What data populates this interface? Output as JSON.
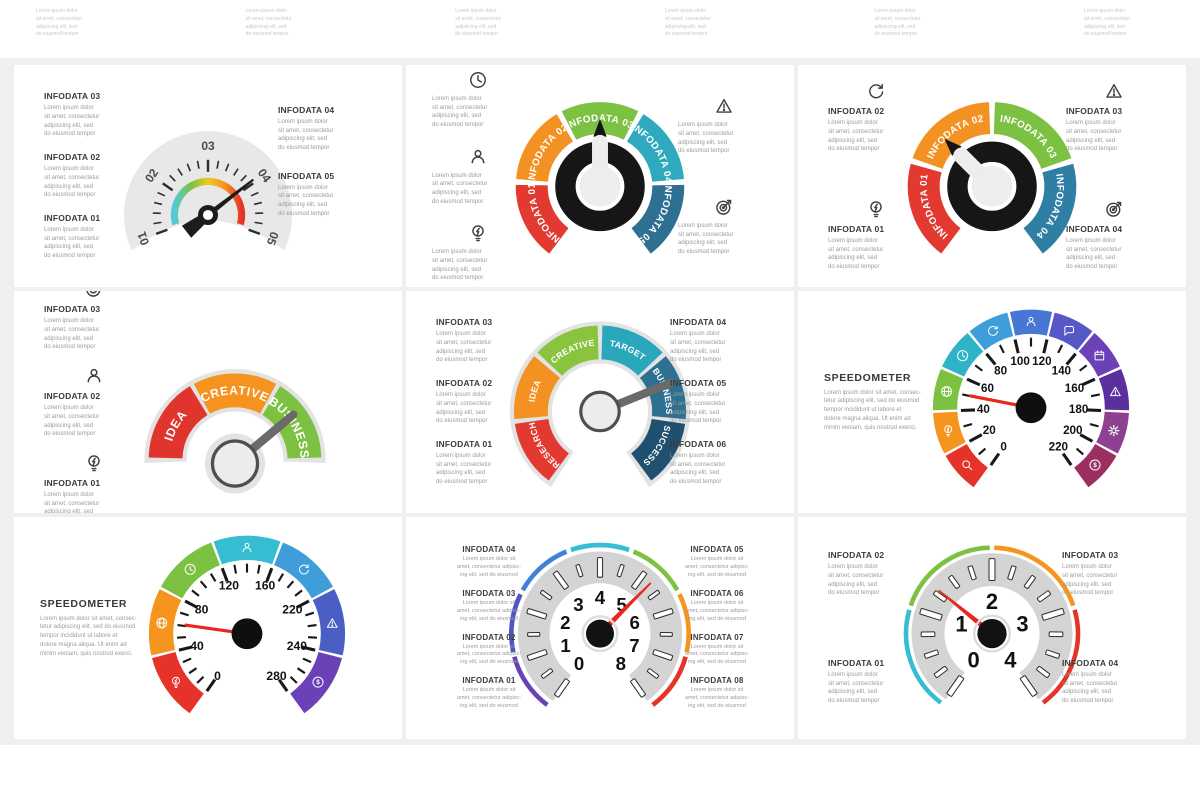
{
  "page": {
    "background": "#ffffff",
    "canvas_background": "#efefef",
    "card_background": "#ffffff",
    "needle_red": "#e8281e",
    "band_gray": "#d4d4d4",
    "body_gray": "#e8e8e8"
  },
  "shared": {
    "body": "Lorem ipsum dolor\nsit amet, consectetur\nadipiscing elit, sed\ndo eiusmod tempor",
    "body3": "Lorem ipsum dolor sit\namet, consectetur adipisc-\ning elit, sed do eiusmod",
    "speedo_paragraph": "Lorem ipsum dolor sit amet, consec-\ntetur adipiscing elit, sed do eiusmod\ntempor incididunt ut labore et\ndolore magna aliqua. Ut enim ad\nminim veniam, quis nostrud exerci."
  },
  "cards": {
    "c1": {
      "left_titles": [
        "INFODATA 03",
        "INFODATA 02",
        "INFODATA 01"
      ],
      "right_titles": [
        "INFODATA 04",
        "INFODATA 05"
      ],
      "gauge": {
        "type": "scale",
        "scale": [
          "01",
          "02",
          "03",
          "04",
          "05"
        ],
        "gradient": [
          "#54c9d9",
          "#7cc142",
          "#f2c71f",
          "#f5941f",
          "#e6332a"
        ],
        "body_color": "#e8e8e8",
        "needle_color": "#1c1c1c",
        "needle_angle": 38
      }
    },
    "c2": {
      "left_icons": [
        "clock",
        "user",
        "bulb"
      ],
      "right_icons": [
        "warning",
        "target"
      ],
      "gauge": {
        "type": "ring",
        "needle_angle": 90,
        "segments": [
          {
            "label": "INFODATA 01",
            "color": "#e23a31"
          },
          {
            "label": "INFODATA 02",
            "color": "#f39222"
          },
          {
            "label": "INFODATA 03",
            "color": "#7cc142"
          },
          {
            "label": "INFODATA 04",
            "color": "#2fa9bd"
          },
          {
            "label": "INFODATA 05",
            "color": "#2d7091"
          }
        ]
      }
    },
    "c3": {
      "left": [
        {
          "icon": "refresh",
          "title": "INFODATA 02"
        },
        {
          "icon": "bulb",
          "title": "INFODATA 01"
        }
      ],
      "right": [
        {
          "icon": "warning",
          "title": "INFODATA 03"
        },
        {
          "icon": "target",
          "title": "INFODATA 04"
        }
      ],
      "gauge": {
        "type": "ring",
        "needle_angle": 135,
        "segments": [
          {
            "label": "INFODATA 01",
            "color": "#e23a31"
          },
          {
            "label": "INFODATA 02",
            "color": "#f39222"
          },
          {
            "label": "INFODATA 03",
            "color": "#7cc142"
          },
          {
            "label": "INFODATA 04",
            "color": "#2f7fa5"
          }
        ]
      }
    },
    "c4": {
      "left": [
        {
          "icon": "target",
          "title": "INFODATA 03"
        },
        {
          "icon": "user",
          "title": "INFODATA 02"
        },
        {
          "icon": "bulb",
          "title": "INFODATA 01"
        }
      ],
      "gauge": {
        "type": "ring",
        "needle_angle": 40,
        "segments": [
          {
            "label": "IDEA",
            "color": "#e0352c"
          },
          {
            "label": "CREATIVE",
            "color": "#f6921e"
          },
          {
            "label": "BUSINESS",
            "color": "#7cc142"
          }
        ]
      }
    },
    "c5": {
      "left_titles": [
        "INFODATA 03",
        "INFODATA 02",
        "INFODATA 01"
      ],
      "right_titles": [
        "INFODATA 04",
        "INFODATA 05",
        "INFODATA 06"
      ],
      "gauge": {
        "type": "ring",
        "needle_angle": 22,
        "segments": [
          {
            "label": "RESEARCH",
            "color": "#e23a31"
          },
          {
            "label": "IDEA",
            "color": "#f39222"
          },
          {
            "label": "CREATIVE",
            "color": "#8ac43f"
          },
          {
            "label": "TARGET",
            "color": "#2ba7bc"
          },
          {
            "label": "BUSINESS",
            "color": "#2d7091"
          },
          {
            "label": "SUCCESS",
            "color": "#20506f"
          }
        ]
      }
    },
    "c6": {
      "heading": "SPEEDOMETER",
      "gauge": {
        "type": "speedo",
        "needle_angle": 169,
        "scale": [
          "0",
          "20",
          "40",
          "60",
          "80",
          "100",
          "120",
          "140",
          "160",
          "180",
          "200",
          "220"
        ],
        "segments": [
          {
            "icon": "search",
            "color": "#e6332a"
          },
          {
            "icon": "bulb",
            "color": "#f5941f"
          },
          {
            "icon": "globe",
            "color": "#7cc142"
          },
          {
            "icon": "clock",
            "color": "#2fb3c7"
          },
          {
            "icon": "refresh",
            "color": "#3f9ed9"
          },
          {
            "icon": "user",
            "color": "#4677d4"
          },
          {
            "icon": "chat",
            "color": "#5658c8"
          },
          {
            "icon": "calendar",
            "color": "#6b41b8"
          },
          {
            "icon": "warning",
            "color": "#5c2f9e"
          },
          {
            "icon": "gear",
            "color": "#8f4191"
          },
          {
            "icon": "dollar",
            "color": "#9c2f62"
          }
        ]
      }
    },
    "c7": {
      "heading": "SPEEDOMETER",
      "gauge": {
        "type": "speedo",
        "needle_angle": 172,
        "scale": [
          "0",
          "40",
          "80",
          "120",
          "160",
          "220",
          "240",
          "280"
        ],
        "segments": [
          {
            "icon": "bulb",
            "color": "#e6332a"
          },
          {
            "icon": "globe",
            "color": "#f5941f"
          },
          {
            "icon": "clock",
            "color": "#7cc142"
          },
          {
            "icon": "user",
            "color": "#35bdd1"
          },
          {
            "icon": "refresh",
            "color": "#3f9ed9"
          },
          {
            "icon": "warning",
            "color": "#4a5ec4"
          },
          {
            "icon": "dollar",
            "color": "#6b41b8"
          }
        ]
      }
    },
    "c8": {
      "left_titles": [
        "INFODATA 04",
        "INFODATA 03",
        "INFODATA 02",
        "INFODATA 01"
      ],
      "right_titles": [
        "INFODATA 05",
        "INFODATA 06",
        "INFODATA 07",
        "INFODATA 08"
      ],
      "gauge": {
        "type": "tacho",
        "needle_angle": 45,
        "scale": [
          "0",
          "1",
          "2",
          "3",
          "4",
          "5",
          "6",
          "7",
          "8"
        ],
        "arc_colors": [
          "#6b41b8",
          "#4f55c5",
          "#3e82d9",
          "#33bed4",
          "#7cc142",
          "#f5941f",
          "#e6332a"
        ]
      }
    },
    "c9": {
      "left_titles": [
        "INFODATA 02",
        "INFODATA 01"
      ],
      "right_titles": [
        "INFODATA 03",
        "INFODATA 04"
      ],
      "gauge": {
        "type": "tacho",
        "needle_angle": 141,
        "scale": [
          "0",
          "1",
          "2",
          "3",
          "4"
        ],
        "arc_colors": [
          "#35bdd1",
          "#7cc142",
          "#f5941f",
          "#e6332a"
        ]
      }
    }
  }
}
